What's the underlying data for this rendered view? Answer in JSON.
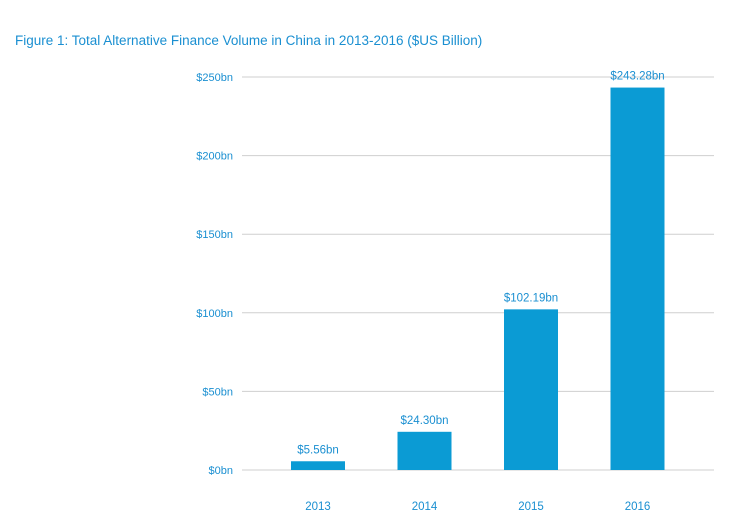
{
  "title": "Figure 1: Total Alternative Finance Volume in China in 2013-2016 ($US Billion)",
  "colors": {
    "bar": "#0b9bd4",
    "text": "#1a8fd1",
    "grid": "#cfcfcf"
  },
  "chart_data": {
    "type": "bar",
    "title": "Figure 1: Total Alternative Finance Volume in China in 2013-2016 ($US Billion)",
    "xlabel": "",
    "ylabel": "",
    "categories": [
      "2013",
      "2014",
      "2015",
      "2016"
    ],
    "values": [
      5.56,
      24.3,
      102.19,
      243.28
    ],
    "value_labels": [
      "$5.56bn",
      "$24.30bn",
      "$102.19bn",
      "$243.28bn"
    ],
    "yticks": [
      0,
      50,
      100,
      150,
      200,
      250
    ],
    "ytick_labels": [
      "$0bn",
      "$50bn",
      "$100bn",
      "$150bn",
      "$200bn",
      "$250bn"
    ],
    "ylim": [
      0,
      250
    ],
    "grid": true,
    "legend": "none"
  }
}
